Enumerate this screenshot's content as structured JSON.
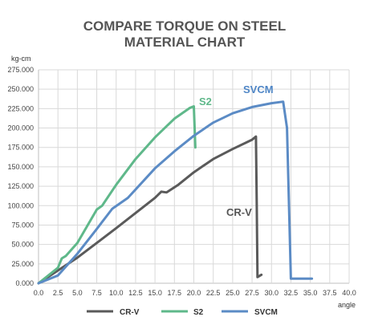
{
  "chart_data": {
    "type": "line",
    "title_lines": [
      "COMPARE TORQUE ON STEEL",
      "MATERIAL CHART"
    ],
    "ylabel": "kg-cm",
    "xlabel": "angle",
    "xlim": [
      0,
      40
    ],
    "ylim": [
      0,
      275000
    ],
    "x_ticks": [
      "0.0",
      "2.5",
      "5.0",
      "7.5",
      "10.0",
      "12.5",
      "15.0",
      "17.5",
      "20.0",
      "22.5",
      "25.0",
      "27.5",
      "30.0",
      "32.5",
      "35.0",
      "37.5",
      "40.0"
    ],
    "y_ticks": [
      "0.000",
      "25.000",
      "50.000",
      "75.000",
      "100.000",
      "125.000",
      "150.000",
      "175.000",
      "200.000",
      "225.000",
      "250.000",
      "275.000"
    ],
    "grid": true,
    "legend_position": "bottom",
    "series": [
      {
        "name": "CR-V",
        "color": "#5a5a5a",
        "label_color": "#555555",
        "points": [
          [
            0,
            0
          ],
          [
            5,
            33000
          ],
          [
            10,
            71000
          ],
          [
            15,
            110000
          ],
          [
            15.8,
            118000
          ],
          [
            16.5,
            117000
          ],
          [
            18,
            127000
          ],
          [
            20,
            143000
          ],
          [
            22.5,
            160000
          ],
          [
            25,
            173000
          ],
          [
            27.5,
            185000
          ],
          [
            28,
            189000
          ],
          [
            28.1,
            100000
          ],
          [
            28.2,
            8000
          ],
          [
            28.7,
            11000
          ]
        ]
      },
      {
        "name": "S2",
        "color": "#5fb88a",
        "label_color": "#5fb88a",
        "points": [
          [
            0,
            0
          ],
          [
            2.5,
            20000
          ],
          [
            3,
            32000
          ],
          [
            3.5,
            35000
          ],
          [
            5,
            52000
          ],
          [
            7.5,
            95000
          ],
          [
            8.2,
            100000
          ],
          [
            10,
            127000
          ],
          [
            12.5,
            160000
          ],
          [
            15,
            188000
          ],
          [
            17.5,
            212000
          ],
          [
            19.5,
            226000
          ],
          [
            20,
            228000
          ],
          [
            20.2,
            175000
          ]
        ]
      },
      {
        "name": "SVCM",
        "color": "#5b8bc5",
        "label_color": "#4f86c6",
        "points": [
          [
            0,
            0
          ],
          [
            2.5,
            10000
          ],
          [
            5,
            38000
          ],
          [
            7.5,
            70000
          ],
          [
            9.5,
            96000
          ],
          [
            10.5,
            103000
          ],
          [
            11.5,
            110000
          ],
          [
            15,
            148000
          ],
          [
            17.5,
            170000
          ],
          [
            20,
            190000
          ],
          [
            22.5,
            207000
          ],
          [
            25,
            219000
          ],
          [
            27.5,
            227000
          ],
          [
            30,
            232000
          ],
          [
            31.5,
            234000
          ],
          [
            32,
            200000
          ],
          [
            32.5,
            6000
          ],
          [
            35.2,
            6000
          ]
        ]
      }
    ],
    "annotations": [
      "S2",
      "SVCM",
      "CR-V"
    ]
  }
}
